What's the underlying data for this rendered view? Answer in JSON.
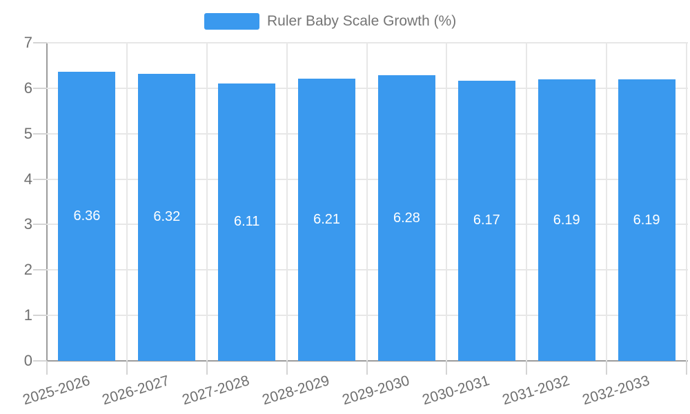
{
  "chart_data": {
    "type": "bar",
    "title": "Ruler Baby Scale Growth (%)",
    "legend_position": "top",
    "categories": [
      "2025-2026",
      "2026-2027",
      "2027-2028",
      "2028-2029",
      "2029-2030",
      "2030-2031",
      "2031-2032",
      "2032-2033"
    ],
    "series": [
      {
        "name": "Ruler Baby Scale Growth (%)",
        "values": [
          6.36,
          6.32,
          6.11,
          6.21,
          6.28,
          6.17,
          6.19,
          6.19
        ]
      }
    ],
    "value_labels": [
      "6.36",
      "6.32",
      "6.11",
      "6.21",
      "6.28",
      "6.17",
      "6.19",
      "6.19"
    ],
    "xlabel": "",
    "ylabel": "",
    "ylim": [
      0,
      7
    ],
    "yticks": [
      "0",
      "1",
      "2",
      "3",
      "4",
      "5",
      "6",
      "7"
    ],
    "grid": true,
    "colors": {
      "bar": "#3A99EE",
      "grid": "#E7E7E7",
      "tick": "#D4D4D4",
      "axis": "#9B9B9B",
      "axis_text": "#6F6F6F",
      "legend_text": "#757575",
      "value_text": "#FFFFFF"
    }
  }
}
